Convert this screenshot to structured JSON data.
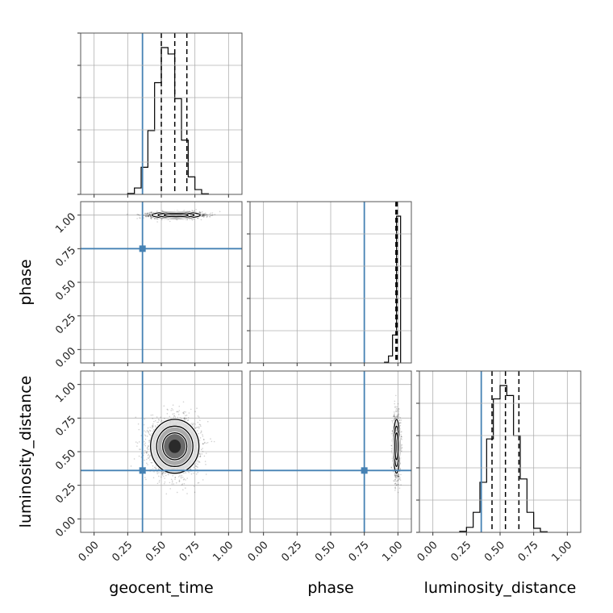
{
  "chart_data": {
    "type": "corner",
    "parameters": [
      "geocent_time",
      "phase",
      "luminosity_distance"
    ],
    "axis_labels": {
      "x": [
        "geocent_time",
        "phase",
        "luminosity_distance"
      ],
      "y": [
        "",
        "phase",
        "luminosity_distance"
      ]
    },
    "ticks": [
      0.0,
      0.25,
      0.5,
      0.75,
      1.0
    ],
    "tick_labels": [
      "0.00",
      "0.25",
      "0.50",
      "0.75",
      "1.00"
    ],
    "range": [
      -0.1,
      1.1
    ],
    "grid": true,
    "truths": {
      "geocent_time": 0.36,
      "phase": 0.75,
      "luminosity_distance": 0.36
    },
    "truth_color": "#4682b4",
    "quantiles": {
      "geocent_time": [
        0.5,
        0.6,
        0.69
      ],
      "phase": [
        0.985,
        0.99,
        0.995
      ],
      "luminosity_distance": [
        0.44,
        0.54,
        0.64
      ]
    },
    "histograms": {
      "geocent_time": {
        "edges": [
          0.25,
          0.3,
          0.35,
          0.4,
          0.45,
          0.5,
          0.55,
          0.6,
          0.65,
          0.7,
          0.75,
          0.8,
          0.85
        ],
        "counts": [
          3,
          20,
          85,
          200,
          350,
          460,
          440,
          300,
          170,
          55,
          15,
          2
        ]
      },
      "phase": {
        "edges": [
          0.9,
          0.93,
          0.96,
          0.99,
          1.02
        ],
        "counts": [
          5,
          50,
          200,
          1050
        ]
      },
      "luminosity_distance": {
        "edges": [
          0.2,
          0.25,
          0.3,
          0.35,
          0.4,
          0.45,
          0.5,
          0.55,
          0.6,
          0.65,
          0.7,
          0.75,
          0.8,
          0.85
        ],
        "counts": [
          3,
          15,
          60,
          150,
          280,
          400,
          440,
          410,
          290,
          160,
          60,
          12,
          2
        ]
      }
    },
    "posteriors_2d": [
      {
        "x": "geocent_time",
        "y": "phase",
        "x_mean": 0.61,
        "x_sd": 0.09,
        "y_mean": 1.0,
        "y_sd": 0.012
      },
      {
        "x": "geocent_time",
        "y": "luminosity_distance",
        "x_mean": 0.6,
        "x_sd": 0.09,
        "y_mean": 0.54,
        "y_sd": 0.1
      },
      {
        "x": "phase",
        "y": "luminosity_distance",
        "x_mean": 0.99,
        "x_sd": 0.012,
        "y_mean": 0.54,
        "y_sd": 0.1
      }
    ]
  }
}
